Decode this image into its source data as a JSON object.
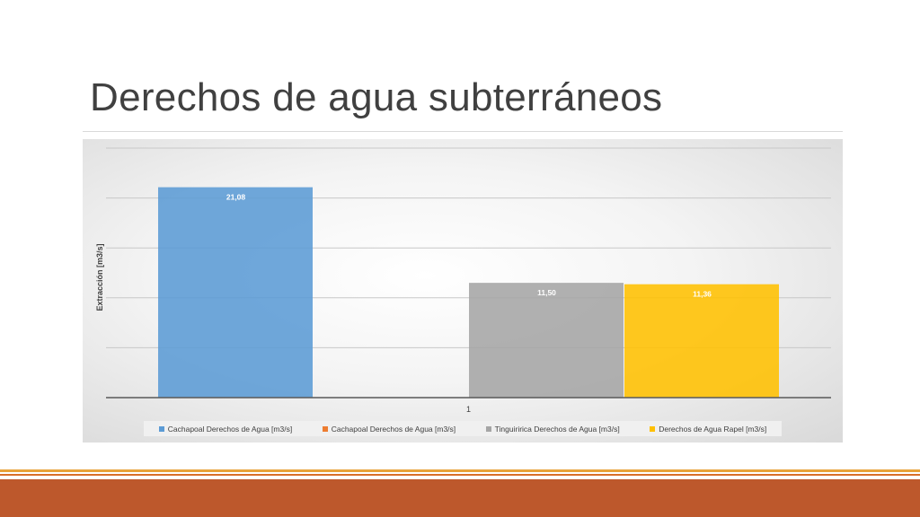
{
  "slide": {
    "title": "Derechos de agua subterráneos"
  },
  "colors": {
    "footer_bar": "#bd582c",
    "footer_accent": "#e8a33a"
  },
  "chart_data": {
    "type": "bar",
    "title": "",
    "xlabel": "",
    "ylabel": "Extracción [m3/s]",
    "categories": [
      "1"
    ],
    "ylim": [
      0,
      25
    ],
    "grid": true,
    "legend_position": "bottom",
    "y_tick_labels_shown": false,
    "data_labels_shown": true,
    "series": [
      {
        "name": "Cachapoal Derechos de Agua [m3/s]",
        "values": [
          21.08
        ],
        "label": "21,08",
        "color": "#5b9bd5"
      },
      {
        "name": "Cachapoal Derechos de Agua [m3/s]",
        "values": [
          0
        ],
        "label": "",
        "color": "#ed7d31"
      },
      {
        "name": "Tinguiririca Derechos de Agua [m3/s]",
        "values": [
          11.5
        ],
        "label": "11,50",
        "color": "#a5a5a5"
      },
      {
        "name": "Derechos de Agua Rapel [m3/s]",
        "values": [
          11.36
        ],
        "label": "11,36",
        "color": "#ffc000"
      }
    ]
  }
}
